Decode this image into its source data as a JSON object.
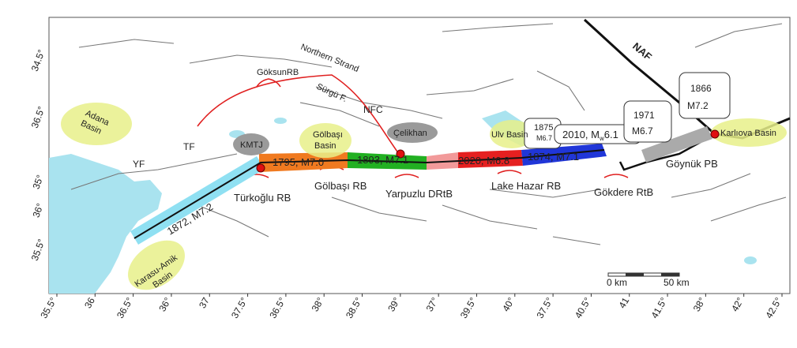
{
  "map": {
    "labels": {
      "northern_strand": "Northern Strand",
      "naf": "NAF",
      "goksun_rb": "GöksunRB",
      "surgu_f": "Sürgü F.",
      "nfc": "NFC",
      "adana_basin": [
        "Adana",
        "Basin"
      ],
      "yf": "YF",
      "tf": "TF",
      "kmtj": "KMTJ",
      "golbasi_basin": [
        "Gölbaşı",
        "Basin"
      ],
      "celikhan": "Çelikhan",
      "box_1875": [
        "1875",
        "M6.7"
      ],
      "ulv_basin": "Ulv Basin",
      "box_2010": [
        "2010, M",
        "w",
        "6.1"
      ],
      "box_1971": [
        "1971",
        "M6.7"
      ],
      "box_1866": [
        "1866",
        "M7.2"
      ],
      "karliova_basin": "Karlıova Basin",
      "seg_1795": "1795, M7.0",
      "seg_1893": "1893, M7.1",
      "seg_2020": "2020, M6.8",
      "seg_1874": "1874, M7.1",
      "seg_1872": "1872, M7.2",
      "turkoglu_rb": "Türkoğlu RB",
      "golbasi_rb": "Gölbaşı RB",
      "yarpuzlu": "Yarpuzlu DRtB",
      "lake_hazar_rb": "Lake Hazar RB",
      "gokdere_rtb": "Gökdere RtB",
      "goynuk_pb": "Göynük PB",
      "karasu_amik": [
        "Karasu-Amik",
        "Basin"
      ],
      "scale_0": "0 km",
      "scale_50": "50 km"
    },
    "left_axis": [
      "34.5°",
      "36.5°",
      "35°",
      "36°",
      "35.5°"
    ],
    "bottom_axis": [
      "35.5°",
      "36",
      "36.5°",
      "36°",
      "37",
      "37.5°",
      "36.5°",
      "38°",
      "38.5°",
      "39°",
      "37°",
      "39.5°",
      "40°",
      "37.5°",
      "40.5°",
      "41",
      "41.5°",
      "38°",
      "42°",
      "42.5°"
    ]
  }
}
